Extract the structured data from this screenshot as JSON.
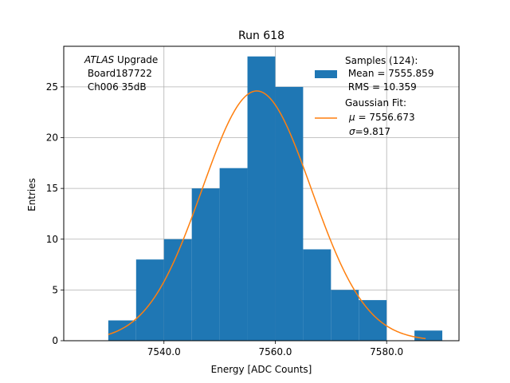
{
  "chart_data": {
    "type": "bar",
    "title": "Run 618",
    "xlabel": "Energy [ADC Counts]",
    "ylabel": "Entries",
    "xlim": [
      7522.0,
      7593.0
    ],
    "ylim": [
      0,
      29
    ],
    "grid": true,
    "x_ticks": [
      7540,
      7560,
      7580
    ],
    "x_tick_labels": [
      "7540.0",
      "7560.0",
      "7580.0"
    ],
    "y_ticks": [
      0,
      5,
      10,
      15,
      20,
      25
    ],
    "y_tick_labels": [
      "0",
      "5",
      "10",
      "15",
      "20",
      "25"
    ],
    "annotation": {
      "line1_italic": "ATLAS",
      "line1_rest": " Upgrade",
      "line2": " Board187722",
      "line3": " Ch006 35dB"
    },
    "histogram": {
      "name": "Samples (124):",
      "color": "#1f77b4",
      "bin_edges": [
        7530,
        7535,
        7540,
        7545,
        7550,
        7555,
        7560,
        7565,
        7570,
        7575,
        7580,
        7585,
        7590
      ],
      "counts": [
        2,
        8,
        10,
        15,
        17,
        28,
        25,
        9,
        5,
        4,
        0,
        1
      ]
    },
    "fit": {
      "name": "Gaussian Fit:",
      "color": "#ff7f0e",
      "mu": 7556.673,
      "sigma": 9.817,
      "amplitude": 24.6,
      "x_range": [
        7530,
        7587
      ]
    },
    "legend": {
      "position": "top-right",
      "samples_title": "Samples (124):",
      "samples_mean": " Mean = 7555.859",
      "samples_rms": " RMS = 10.359",
      "fit_title": "Gaussian Fit:",
      "fit_mu_symbol": "μ",
      "fit_mu_value": " = 7556.673",
      "fit_sigma_symbol": "σ",
      "fit_sigma_value": "=9.817"
    }
  }
}
